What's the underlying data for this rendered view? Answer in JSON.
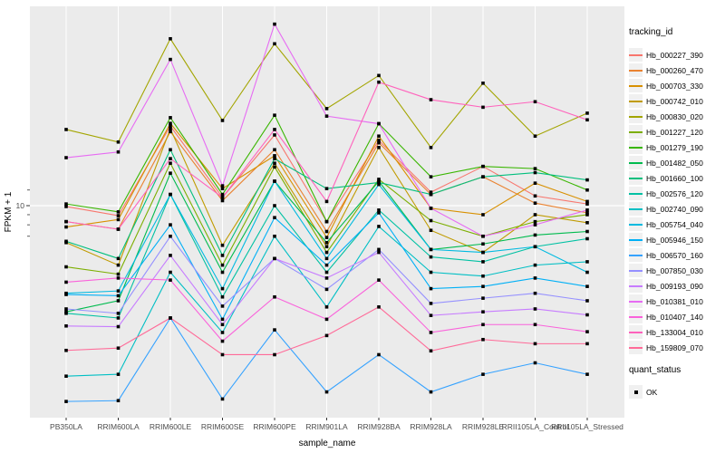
{
  "chart_data": {
    "type": "line",
    "title": "",
    "xlabel": "sample_name",
    "ylabel": "FPKM + 1",
    "y_scale": "log10",
    "y_axis": {
      "labeled_break": 10,
      "labeled_break_text": "10",
      "minor_tick_values": [
        12,
        9,
        8,
        7
      ],
      "visible_range": [
        1,
        102
      ]
    },
    "grid": {
      "vertical_gridlines": true,
      "horizontal_gridline_at": 10
    },
    "legend_position": "right",
    "panel_bg": "#ebebeb",
    "gridline_color": "#ffffff",
    "point_color": "#000000",
    "point_shape": "square",
    "categories": [
      "PB350LA",
      "RRIM600LA",
      "RRIM600LE",
      "RRIM600SE",
      "RRIM600PE",
      "RRIM901LA",
      "RRIM928BA",
      "RRIM928LA",
      "RRIM928LE",
      "RRII105LA_Control",
      "RRII105LA_Stressed"
    ],
    "series": [
      {
        "name": "Hb_000227_390",
        "color": "#F8766D",
        "values": [
          9.9,
          8.9,
          25.3,
          11.0,
          22.8,
          8.3,
          21.4,
          11.7,
          15.8,
          11.2,
          10.2
        ]
      },
      {
        "name": "Hb_000260_470",
        "color": "#EA8331",
        "values": [
          8.3,
          7.6,
          23.7,
          10.6,
          19.2,
          7.4,
          20.8,
          11.4,
          14.0,
          10.3,
          9.2
        ]
      },
      {
        "name": "Hb_000703_330",
        "color": "#D89000",
        "values": [
          7.8,
          8.5,
          26.1,
          12.2,
          17.9,
          6.9,
          22.5,
          9.7,
          9.0,
          13.0,
          10.5
        ]
      },
      {
        "name": "Hb_000742_010",
        "color": "#C09B00",
        "values": [
          6.5,
          5.0,
          24.5,
          6.3,
          16.4,
          6.2,
          19.7,
          7.5,
          5.8,
          9.0,
          8.2
        ]
      },
      {
        "name": "Hb_000830_020",
        "color": "#A3A500",
        "values": [
          24.3,
          21.0,
          70.0,
          27.0,
          66.0,
          31.0,
          45.6,
          19.7,
          41.7,
          22.5,
          29.4
        ]
      },
      {
        "name": "Hb_001227_120",
        "color": "#7CAE00",
        "values": [
          4.9,
          4.5,
          16.4,
          5.0,
          15.7,
          5.8,
          13.6,
          8.4,
          7.0,
          8.3,
          9.0
        ]
      },
      {
        "name": "Hb_001279_190",
        "color": "#39B600",
        "values": [
          10.2,
          9.3,
          27.9,
          11.4,
          28.7,
          8.3,
          26.0,
          14.0,
          15.8,
          15.4,
          12.0
        ]
      },
      {
        "name": "Hb_001482_050",
        "color": "#00BB4E",
        "values": [
          2.9,
          3.3,
          14.6,
          4.6,
          13.3,
          6.5,
          13.3,
          6.0,
          6.4,
          7.1,
          7.4
        ]
      },
      {
        "name": "Hb_001660_100",
        "color": "#00BF7D",
        "values": [
          6.6,
          5.4,
          19.2,
          5.6,
          17.3,
          12.2,
          13.1,
          11.4,
          14.0,
          14.7,
          13.5
        ]
      },
      {
        "name": "Hb_002576_120",
        "color": "#00C1A3",
        "values": [
          2.85,
          2.7,
          11.4,
          3.45,
          10.0,
          4.6,
          9.5,
          5.5,
          5.2,
          6.2,
          6.8
        ]
      },
      {
        "name": "Hb_002740_090",
        "color": "#00BFC4",
        "values": [
          1.37,
          1.4,
          4.6,
          2.28,
          7.0,
          3.07,
          7.85,
          4.6,
          4.4,
          5.0,
          5.2
        ]
      },
      {
        "name": "Hb_005754_040",
        "color": "#00BAE0",
        "values": [
          3.6,
          3.7,
          11.4,
          3.8,
          13.3,
          5.4,
          12.8,
          6.0,
          5.8,
          6.2,
          4.6
        ]
      },
      {
        "name": "Hb_005946_150",
        "color": "#00B0F6",
        "values": [
          3.55,
          3.5,
          8.0,
          2.66,
          8.7,
          5.0,
          9.2,
          3.8,
          3.9,
          4.3,
          3.9
        ]
      },
      {
        "name": "Hb_006570_160",
        "color": "#35A2FF",
        "values": [
          1.02,
          1.03,
          2.7,
          1.05,
          2.35,
          1.14,
          1.76,
          1.14,
          1.4,
          1.6,
          1.4
        ]
      },
      {
        "name": "Hb_007850_030",
        "color": "#9590FF",
        "values": [
          3.0,
          2.85,
          7.0,
          3.1,
          5.4,
          3.77,
          6.0,
          3.2,
          3.4,
          3.6,
          3.3
        ]
      },
      {
        "name": "Hb_009193_090",
        "color": "#C77CFF",
        "values": [
          2.46,
          2.44,
          5.6,
          2.5,
          5.4,
          4.3,
          5.8,
          2.78,
          2.9,
          3.0,
          2.8
        ]
      },
      {
        "name": "Hb_010381_010",
        "color": "#E76BF3",
        "values": [
          17.5,
          18.7,
          55.0,
          12.6,
          83.0,
          28.4,
          26.0,
          9.7,
          7.0,
          8.0,
          9.5
        ]
      },
      {
        "name": "Hb_010407_140",
        "color": "#FA62DB",
        "values": [
          4.1,
          4.3,
          4.2,
          2.06,
          3.45,
          2.66,
          4.2,
          2.28,
          2.5,
          2.5,
          2.3
        ]
      },
      {
        "name": "Hb_133004_010",
        "color": "#FF62BC",
        "values": [
          8.3,
          7.6,
          17.3,
          11.0,
          24.3,
          10.5,
          42.2,
          34.4,
          31.5,
          33.6,
          27.2
        ]
      },
      {
        "name": "Hb_159809_070",
        "color": "#FF6A98",
        "values": [
          1.85,
          1.9,
          2.7,
          1.76,
          1.76,
          2.2,
          3.07,
          1.84,
          2.1,
          2.0,
          2.0
        ]
      }
    ],
    "legend": {
      "tracking_title": "tracking_id",
      "quant_title": "quant_status",
      "quant_items": [
        {
          "label": "OK",
          "marker": "square"
        }
      ]
    }
  }
}
